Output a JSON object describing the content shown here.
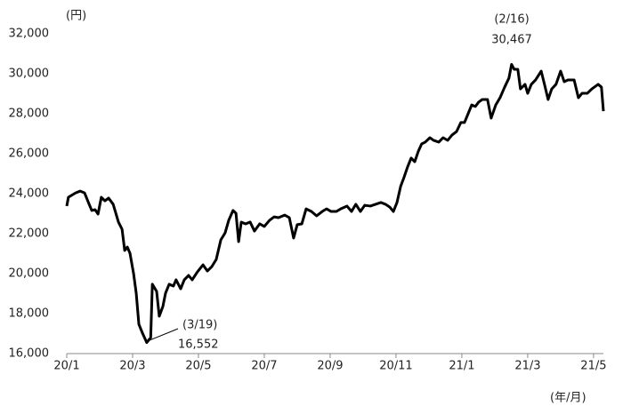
{
  "chart_data": {
    "type": "line",
    "y_unit": "(円)",
    "x_unit": "(年/月)",
    "color": "#000000",
    "xlim": [
      0,
      16.3
    ],
    "xticks": [
      {
        "value": 0,
        "label": "20/1"
      },
      {
        "value": 2,
        "label": "20/3"
      },
      {
        "value": 4,
        "label": "20/5"
      },
      {
        "value": 6,
        "label": "20/7"
      },
      {
        "value": 8,
        "label": "20/9"
      },
      {
        "value": 10,
        "label": "20/11"
      },
      {
        "value": 12,
        "label": "21/1"
      },
      {
        "value": 14,
        "label": "21/3"
      },
      {
        "value": 16,
        "label": "21/5"
      }
    ],
    "ylim": [
      16000,
      32000
    ],
    "yticks": [
      {
        "value": 16000,
        "label": "16,000"
      },
      {
        "value": 18000,
        "label": "18,000"
      },
      {
        "value": 20000,
        "label": "20,000"
      },
      {
        "value": 22000,
        "label": "22,000"
      },
      {
        "value": 24000,
        "label": "24,000"
      },
      {
        "value": 26000,
        "label": "26,000"
      },
      {
        "value": 28000,
        "label": "28,000"
      },
      {
        "value": 30000,
        "label": "30,000"
      },
      {
        "value": 32000,
        "label": "32,000"
      }
    ],
    "annotations": [
      {
        "date": "(3/19)",
        "value": "16,552"
      },
      {
        "date": "(2/16)",
        "value": "30,467"
      }
    ],
    "x": [
      0,
      0.05,
      0.14,
      0.27,
      0.41,
      0.54,
      0.68,
      0.76,
      0.86,
      0.95,
      1.05,
      1.16,
      1.27,
      1.41,
      1.57,
      1.68,
      1.76,
      1.84,
      1.92,
      2.03,
      2.11,
      2.19,
      2.3,
      2.43,
      2.55,
      2.6,
      2.73,
      2.81,
      2.92,
      3,
      3.11,
      3.24,
      3.32,
      3.46,
      3.57,
      3.7,
      3.81,
      3.97,
      4.14,
      4.27,
      4.41,
      4.54,
      4.68,
      4.81,
      4.92,
      5.05,
      5.14,
      5.22,
      5.3,
      5.43,
      5.57,
      5.7,
      5.86,
      6,
      6.16,
      6.3,
      6.43,
      6.62,
      6.76,
      6.89,
      7,
      7.14,
      7.27,
      7.43,
      7.59,
      7.76,
      7.89,
      8.03,
      8.19,
      8.32,
      8.51,
      8.65,
      8.78,
      8.92,
      9.05,
      9.22,
      9.38,
      9.54,
      9.68,
      9.81,
      9.92,
      10.03,
      10.14,
      10.24,
      10.35,
      10.46,
      10.57,
      10.68,
      10.78,
      10.89,
      11.03,
      11.14,
      11.3,
      11.43,
      11.57,
      11.7,
      11.84,
      11.97,
      12.08,
      12.19,
      12.3,
      12.41,
      12.51,
      12.62,
      12.78,
      12.89,
      13.03,
      13.16,
      13.3,
      13.43,
      13.51,
      13.59,
      13.7,
      13.78,
      13.92,
      14,
      14.11,
      14.24,
      14.41,
      14.51,
      14.62,
      14.73,
      14.86,
      15,
      15.11,
      15.22,
      15.41,
      15.54,
      15.65,
      15.81,
      15.95,
      16.14,
      16.24,
      16.3
    ],
    "values": [
      23380,
      23820,
      23910,
      24040,
      24130,
      24040,
      23470,
      23160,
      23200,
      22980,
      23820,
      23640,
      23780,
      23470,
      22580,
      22220,
      21160,
      21330,
      21020,
      20000,
      19020,
      17470,
      17020,
      16552,
      16800,
      19470,
      19110,
      17870,
      18360,
      19020,
      19470,
      19380,
      19690,
      19240,
      19690,
      19910,
      19690,
      20090,
      20440,
      20130,
      20360,
      20710,
      21690,
      22040,
      22670,
      23160,
      23020,
      21600,
      22580,
      22490,
      22580,
      22130,
      22490,
      22360,
      22670,
      22840,
      22800,
      22930,
      22800,
      21780,
      22450,
      22490,
      23240,
      23110,
      22890,
      23110,
      23240,
      23110,
      23110,
      23240,
      23380,
      23110,
      23470,
      23110,
      23420,
      23380,
      23470,
      23560,
      23470,
      23330,
      23110,
      23560,
      24360,
      24800,
      25330,
      25780,
      25600,
      26130,
      26490,
      26580,
      26800,
      26670,
      26580,
      26800,
      26670,
      26930,
      27110,
      27560,
      27560,
      28000,
      28440,
      28360,
      28580,
      28710,
      28710,
      27780,
      28440,
      28800,
      29330,
      29780,
      30467,
      30220,
      30220,
      29240,
      29470,
      29020,
      29470,
      29690,
      30130,
      29470,
      28710,
      29240,
      29470,
      30130,
      29600,
      29690,
      29690,
      28800,
      29020,
      29020,
      29240,
      29470,
      29330,
      28130
    ]
  }
}
